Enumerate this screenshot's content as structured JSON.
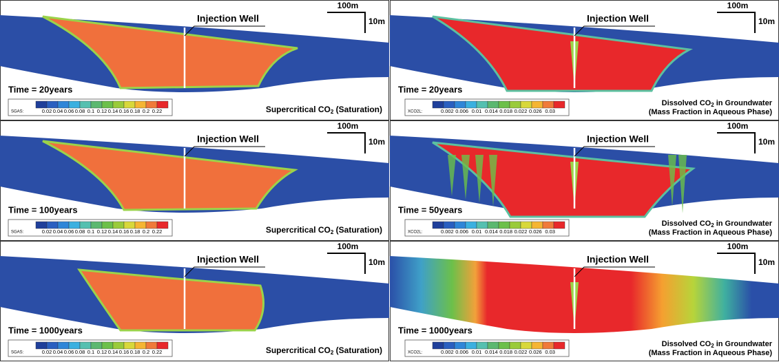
{
  "legend_colors": [
    "#1f3f9a",
    "#2a5fc0",
    "#2f86d8",
    "#3bb0e0",
    "#55c0b0",
    "#5cb870",
    "#6cc04a",
    "#9acb3a",
    "#d8d83a",
    "#f5b533",
    "#f07a3a",
    "#e8282b"
  ],
  "sgas_legend": {
    "name": "SGAS:",
    "ticks": [
      "0.02",
      "0.04",
      "0.06",
      "0.08",
      "0.1",
      "0.12",
      "0.14",
      "0.16",
      "0.18",
      "0.2",
      "0.22"
    ]
  },
  "xco2l_legend": {
    "name": "XCO2L:",
    "ticks": [
      "0.002",
      "0.006",
      "0.01",
      "0.014",
      "0.018",
      "0.022",
      "0.026",
      "0.03"
    ]
  },
  "caption_left": {
    "text": "Supercritical CO",
    "sub": "2",
    "rest": " (Saturation)"
  },
  "caption_right": {
    "text": "Dissolved CO",
    "sub": "2",
    "rest": " in Groundwater",
    "line2": "(Mass Fraction in Aqueous Phase)"
  },
  "panels": [
    {
      "time": "Time = 20years",
      "well": "Injection Well",
      "scale_h": "100m",
      "scale_v": "10m"
    },
    {
      "time": "Time = 20years",
      "well": "Injection Well",
      "scale_h": "100m",
      "scale_v": "10m"
    },
    {
      "time": "Time = 100years",
      "well": "Injection Well",
      "scale_h": "100m",
      "scale_v": "10m"
    },
    {
      "time": "Time = 50years",
      "well": "Injection Well",
      "scale_h": "100m",
      "scale_v": "10m"
    },
    {
      "time": "Time = 1000years",
      "well": "Injection Well",
      "scale_h": "100m",
      "scale_v": "10m"
    },
    {
      "time": "Time = 1000years",
      "well": "Injection Well",
      "scale_h": "100m",
      "scale_v": "10m"
    }
  ]
}
